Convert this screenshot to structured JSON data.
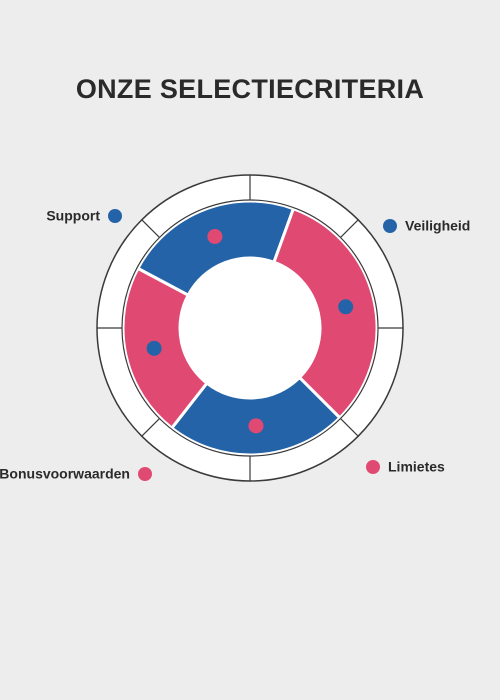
{
  "title": "ONZE SELECTIECRITERIA",
  "labels": [
    "Support",
    "Veiligheid",
    "Limietes",
    "Bonusvoorwaarden"
  ]
}
